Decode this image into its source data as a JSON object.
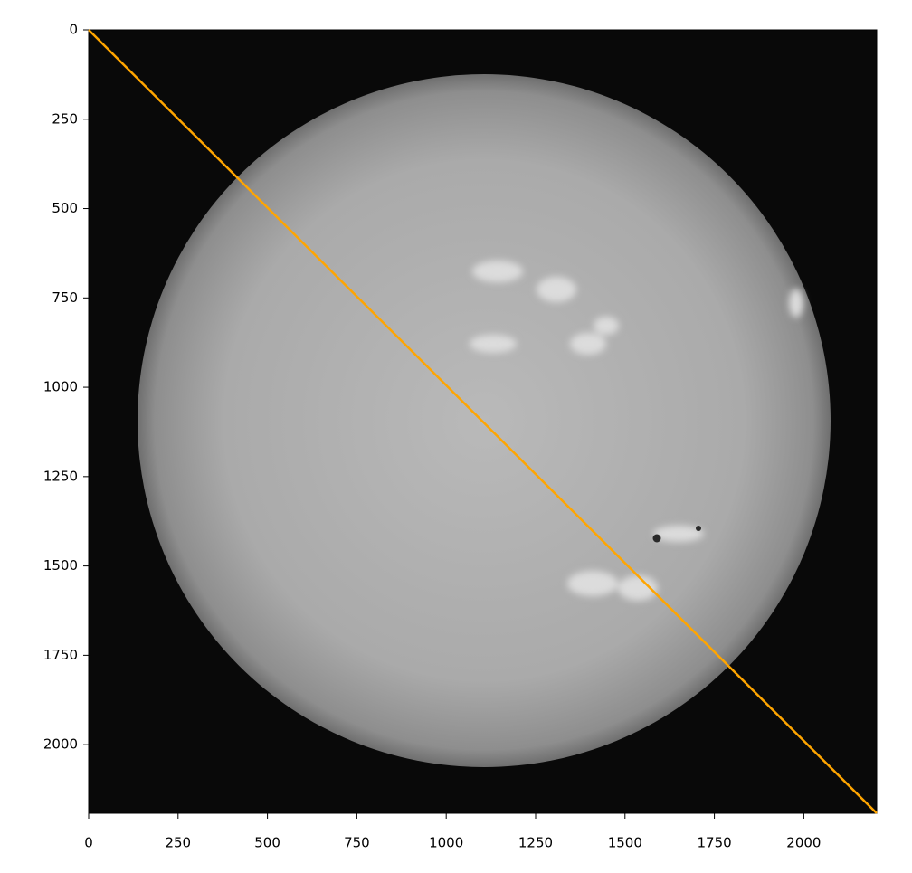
{
  "chart_data": {
    "type": "image",
    "xlim": [
      0,
      2204
    ],
    "ylim": [
      2192,
      0
    ],
    "xticks": [
      0,
      250,
      500,
      750,
      1000,
      1250,
      1500,
      1750,
      2000
    ],
    "yticks": [
      0,
      250,
      500,
      750,
      1000,
      1250,
      1500,
      1750,
      2000
    ],
    "series": [
      {
        "color": "#ffa500",
        "x": [
          0,
          2204
        ],
        "values": [
          0,
          2192
        ]
      }
    ]
  }
}
